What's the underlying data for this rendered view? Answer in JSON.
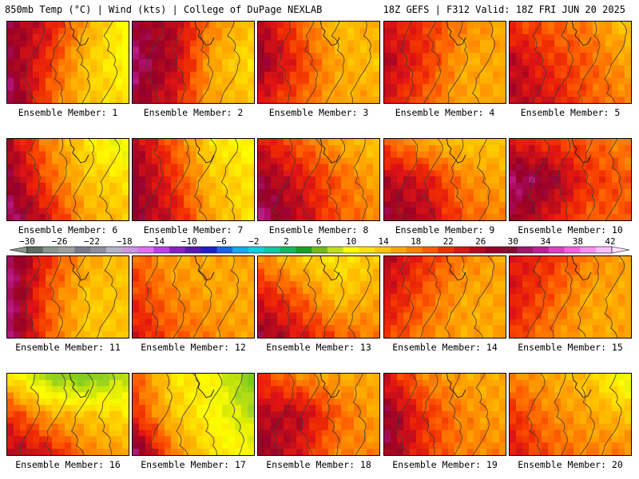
{
  "header": {
    "left": "850mb Temp (°C) | Wind (kts) | College of DuPage NEXLAB",
    "right": "18Z GEFS | F312 Valid: 18Z FRI JUN 20 2025"
  },
  "caption_prefix": "Ensemble Member:",
  "members": [
    {
      "number": "1",
      "field": [
        [
          32,
          28,
          20,
          14
        ],
        [
          32,
          26,
          18,
          14
        ],
        [
          34,
          24,
          18,
          16
        ]
      ]
    },
    {
      "number": "2",
      "field": [
        [
          32,
          30,
          22,
          18
        ],
        [
          34,
          30,
          20,
          16
        ],
        [
          32,
          28,
          20,
          18
        ]
      ]
    },
    {
      "number": "3",
      "field": [
        [
          30,
          24,
          18,
          20
        ],
        [
          32,
          26,
          20,
          18
        ],
        [
          28,
          24,
          20,
          20
        ]
      ]
    },
    {
      "number": "4",
      "field": [
        [
          28,
          26,
          22,
          20
        ],
        [
          30,
          26,
          20,
          20
        ],
        [
          28,
          24,
          20,
          20
        ]
      ]
    },
    {
      "number": "5",
      "field": [
        [
          26,
          24,
          22,
          18
        ],
        [
          30,
          26,
          24,
          20
        ],
        [
          30,
          28,
          24,
          22
        ]
      ]
    },
    {
      "number": "6",
      "field": [
        [
          30,
          22,
          16,
          12
        ],
        [
          32,
          24,
          18,
          16
        ],
        [
          34,
          28,
          20,
          18
        ]
      ]
    },
    {
      "number": "7",
      "field": [
        [
          30,
          24,
          16,
          14
        ],
        [
          32,
          26,
          18,
          16
        ],
        [
          32,
          28,
          20,
          16
        ]
      ]
    },
    {
      "number": "8",
      "field": [
        [
          28,
          24,
          20,
          18
        ],
        [
          32,
          28,
          24,
          20
        ],
        [
          34,
          30,
          24,
          22
        ]
      ]
    },
    {
      "number": "9",
      "field": [
        [
          24,
          20,
          18,
          18
        ],
        [
          30,
          28,
          22,
          20
        ],
        [
          32,
          30,
          24,
          22
        ]
      ]
    },
    {
      "number": "10",
      "field": [
        [
          28,
          26,
          24,
          22
        ],
        [
          34,
          32,
          26,
          24
        ],
        [
          32,
          28,
          24,
          24
        ]
      ]
    },
    {
      "number": "11",
      "field": [
        [
          34,
          26,
          20,
          18
        ],
        [
          34,
          24,
          18,
          18
        ],
        [
          34,
          24,
          18,
          18
        ]
      ]
    },
    {
      "number": "12",
      "field": [
        [
          24,
          20,
          20,
          20
        ],
        [
          26,
          22,
          20,
          20
        ],
        [
          28,
          24,
          22,
          20
        ]
      ]
    },
    {
      "number": "13",
      "field": [
        [
          22,
          18,
          16,
          18
        ],
        [
          28,
          24,
          18,
          20
        ],
        [
          32,
          28,
          24,
          22
        ]
      ]
    },
    {
      "number": "14",
      "field": [
        [
          30,
          26,
          22,
          20
        ],
        [
          28,
          24,
          20,
          20
        ],
        [
          26,
          22,
          20,
          20
        ]
      ]
    },
    {
      "number": "15",
      "field": [
        [
          28,
          26,
          22,
          20
        ],
        [
          28,
          24,
          20,
          20
        ],
        [
          26,
          22,
          20,
          20
        ]
      ]
    },
    {
      "number": "16",
      "field": [
        [
          16,
          8,
          6,
          10
        ],
        [
          26,
          20,
          18,
          16
        ],
        [
          30,
          28,
          22,
          20
        ]
      ]
    },
    {
      "number": "17",
      "field": [
        [
          24,
          16,
          14,
          6
        ],
        [
          26,
          18,
          14,
          10
        ],
        [
          34,
          22,
          16,
          14
        ]
      ]
    },
    {
      "number": "18",
      "field": [
        [
          26,
          22,
          20,
          20
        ],
        [
          30,
          30,
          24,
          20
        ],
        [
          32,
          28,
          22,
          22
        ]
      ]
    },
    {
      "number": "19",
      "field": [
        [
          28,
          22,
          20,
          20
        ],
        [
          32,
          26,
          22,
          20
        ],
        [
          32,
          26,
          22,
          22
        ]
      ]
    },
    {
      "number": "20",
      "field": [
        [
          22,
          20,
          18,
          12
        ],
        [
          26,
          22,
          20,
          18
        ],
        [
          28,
          24,
          22,
          22
        ]
      ]
    }
  ],
  "colorbar": {
    "labels": [
      "−30",
      "−26",
      "−22",
      "−18",
      "−14",
      "−10",
      "−6",
      "−2",
      "2",
      "6",
      "10",
      "14",
      "18",
      "22",
      "26",
      "30",
      "34",
      "38",
      "42"
    ],
    "colors": [
      "#606c60",
      "#8a968a",
      "#a0a0a0",
      "#7a7a8c",
      "#8e8e9c",
      "#b4b4c8",
      "#cc96e0",
      "#e070f0",
      "#c040e8",
      "#8a20c0",
      "#5a18b0",
      "#2020c8",
      "#1c64e6",
      "#14aaf0",
      "#10d0e0",
      "#10c8a0",
      "#14b860",
      "#18a028",
      "#70bc1c",
      "#c0e010",
      "#ffff00",
      "#ffe200",
      "#ffc800",
      "#ffa800",
      "#ff8400",
      "#ff5c00",
      "#f03000",
      "#e01414",
      "#b40a1e",
      "#960028",
      "#840e32",
      "#a0186a",
      "#c02094",
      "#e040c0",
      "#ff60e0",
      "#ff90f0",
      "#ffc0ff"
    ]
  }
}
